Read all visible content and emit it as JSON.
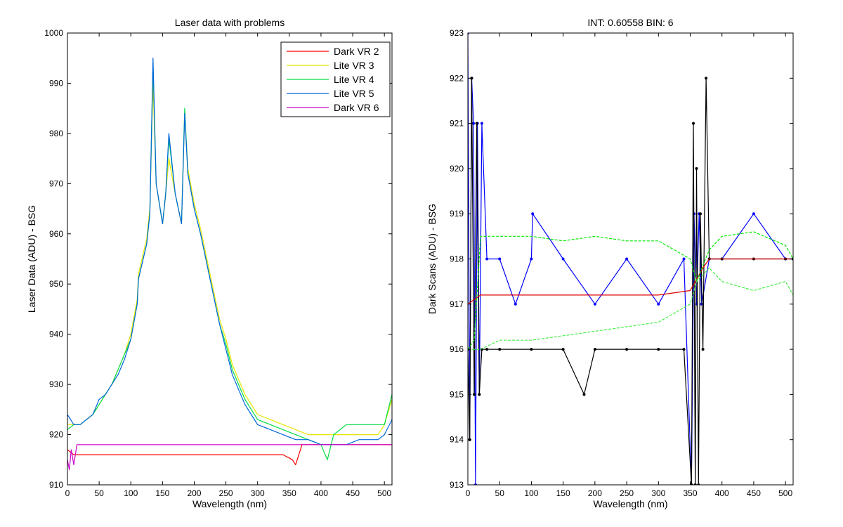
{
  "chart_data": [
    {
      "type": "line",
      "title": "Laser data with problems",
      "xlabel": "Wavelength (nm)",
      "ylabel": "Laser Data (ADU) - BSG",
      "xlim": [
        0,
        512
      ],
      "ylim": [
        910,
        1000
      ],
      "xticks": [
        0,
        50,
        100,
        150,
        200,
        250,
        300,
        350,
        400,
        450,
        500
      ],
      "yticks": [
        910,
        920,
        930,
        940,
        950,
        960,
        970,
        980,
        990,
        1000
      ],
      "grid": false,
      "legend_position": "top-right",
      "series": [
        {
          "name": "Dark VR 2",
          "color": "#ff0000",
          "x": [
            0,
            10,
            20,
            30,
            50,
            100,
            150,
            200,
            250,
            300,
            340,
            355,
            360,
            365,
            370,
            380,
            400,
            450,
            512
          ],
          "y": [
            917,
            916,
            916,
            916,
            916,
            916,
            916,
            916,
            916,
            916,
            916,
            915,
            914,
            916,
            918,
            918,
            918,
            918,
            918
          ]
        },
        {
          "name": "Lite VR 3",
          "color": "#e6e600",
          "x": [
            0,
            10,
            20,
            30,
            40,
            50,
            60,
            70,
            80,
            90,
            100,
            110,
            112,
            125,
            130,
            135,
            140,
            150,
            155,
            160,
            170,
            180,
            185,
            190,
            200,
            210,
            220,
            230,
            240,
            250,
            260,
            270,
            280,
            290,
            300,
            320,
            340,
            360,
            380,
            400,
            420,
            440,
            460,
            480,
            490,
            500,
            512
          ],
          "y": [
            922,
            922,
            922,
            923,
            924,
            926,
            928,
            930,
            933,
            936,
            940,
            947,
            952,
            959,
            965,
            990,
            970,
            962,
            968,
            975,
            968,
            962,
            984,
            973,
            966,
            961,
            955,
            949,
            943,
            939,
            934,
            931,
            928,
            926,
            924,
            923,
            922,
            921,
            920,
            920,
            920,
            920,
            920,
            920,
            920,
            922,
            927
          ]
        },
        {
          "name": "Lite VR 4",
          "color": "#00dd44",
          "x": [
            0,
            10,
            20,
            30,
            40,
            50,
            60,
            70,
            80,
            90,
            100,
            110,
            112,
            125,
            130,
            135,
            140,
            150,
            155,
            160,
            170,
            180,
            185,
            190,
            200,
            210,
            220,
            230,
            240,
            250,
            260,
            270,
            280,
            290,
            300,
            320,
            340,
            360,
            380,
            400,
            410,
            420,
            440,
            460,
            480,
            490,
            500,
            512
          ],
          "y": [
            921,
            922,
            922,
            923,
            924,
            926,
            928,
            930,
            933,
            936,
            939,
            946,
            951,
            958,
            964,
            994,
            970,
            962,
            968,
            979,
            968,
            962,
            985,
            972,
            965,
            960,
            954,
            948,
            942,
            938,
            933,
            930,
            927,
            925,
            923,
            922,
            921,
            920,
            919,
            918,
            915,
            920,
            922,
            922,
            922,
            922,
            922,
            928
          ]
        },
        {
          "name": "Lite VR 5",
          "color": "#0066dd",
          "x": [
            0,
            10,
            20,
            30,
            40,
            50,
            60,
            70,
            80,
            90,
            100,
            110,
            112,
            125,
            130,
            135,
            140,
            150,
            155,
            160,
            170,
            180,
            185,
            190,
            200,
            210,
            220,
            230,
            240,
            250,
            260,
            270,
            280,
            290,
            300,
            320,
            340,
            360,
            380,
            400,
            420,
            440,
            460,
            480,
            490,
            500,
            512
          ],
          "y": [
            924,
            922,
            922,
            923,
            924,
            927,
            928,
            930,
            932,
            935,
            939,
            946,
            951,
            958,
            964,
            995,
            970,
            962,
            968,
            980,
            968,
            962,
            984,
            972,
            965,
            960,
            954,
            948,
            942,
            937,
            932,
            929,
            926,
            924,
            922,
            921,
            920,
            919,
            919,
            918,
            918,
            918,
            919,
            919,
            919,
            920,
            923
          ]
        },
        {
          "name": "Dark VR 6",
          "color": "#cc00cc",
          "x": [
            0,
            3,
            6,
            10,
            15,
            20,
            30,
            50,
            100,
            150,
            200,
            250,
            300,
            350,
            400,
            450,
            512
          ],
          "y": [
            915,
            913,
            917,
            914,
            918,
            918,
            918,
            918,
            918,
            918,
            918,
            918,
            918,
            918,
            918,
            918,
            918
          ]
        }
      ]
    },
    {
      "type": "line",
      "title": "INT: 0.60558    BIN: 6",
      "xlabel": "Wavelength (nm)",
      "ylabel": "Dark Scans (ADU) - BSG",
      "xlim": [
        0,
        512
      ],
      "ylim": [
        913,
        923
      ],
      "xticks": [
        0,
        50,
        100,
        150,
        200,
        250,
        300,
        350,
        400,
        450,
        500
      ],
      "yticks": [
        913,
        914,
        915,
        916,
        917,
        918,
        919,
        920,
        921,
        922,
        923
      ],
      "grid": false,
      "series": [
        {
          "color": "#0000ff",
          "marker": "dot",
          "x": [
            0,
            3,
            6,
            9,
            12,
            15,
            18,
            22,
            30,
            50,
            75,
            100,
            102,
            150,
            200,
            250,
            300,
            340,
            352,
            356,
            360,
            364,
            368,
            380,
            400,
            450,
            500,
            512
          ],
          "y": [
            923,
            914,
            922,
            921,
            913,
            921,
            915,
            921,
            918,
            918,
            917,
            918,
            919,
            918,
            917,
            918,
            917,
            918,
            913,
            919,
            917,
            919,
            917,
            918,
            918,
            919,
            918,
            918
          ]
        },
        {
          "color": "#000000",
          "marker": "dot",
          "x": [
            0,
            3,
            6,
            10,
            14,
            18,
            22,
            30,
            50,
            100,
            150,
            183,
            200,
            250,
            300,
            340,
            352,
            355,
            358,
            360,
            363,
            366,
            370,
            375,
            380,
            400,
            450,
            500,
            512
          ],
          "y": [
            916,
            914,
            922,
            915,
            921,
            915,
            916,
            916,
            916,
            916,
            916,
            915,
            916,
            916,
            916,
            916,
            913,
            921,
            913,
            920,
            913,
            919,
            916,
            922,
            918,
            918,
            918,
            918,
            918
          ]
        },
        {
          "color": "#dd0000",
          "x": [
            0,
            20,
            50,
            100,
            150,
            200,
            250,
            300,
            350,
            370,
            380,
            400,
            450,
            500,
            512
          ],
          "y": [
            917,
            917.2,
            917.2,
            917.2,
            917.2,
            917.2,
            917.2,
            917.2,
            917.3,
            917.8,
            918,
            918,
            918,
            918,
            918
          ]
        },
        {
          "color": "#00ee00",
          "style": "dashed",
          "x": [
            0,
            10,
            20,
            50,
            100,
            150,
            200,
            250,
            300,
            350,
            360,
            380,
            400,
            450,
            500,
            512
          ],
          "y": [
            916,
            916.2,
            918.5,
            918.5,
            918.5,
            918.4,
            918.5,
            918.4,
            918.4,
            918,
            917.5,
            918.2,
            918.5,
            918.6,
            918.3,
            918
          ]
        },
        {
          "color": "#44ee44",
          "style": "dashed",
          "x": [
            0,
            20,
            50,
            100,
            150,
            200,
            250,
            300,
            350,
            360,
            380,
            400,
            450,
            500,
            512
          ],
          "y": [
            916,
            916,
            916.2,
            916.2,
            916.3,
            916.4,
            916.5,
            916.6,
            917,
            917.5,
            917.8,
            917.5,
            917.3,
            917.5,
            917.2
          ]
        }
      ]
    }
  ]
}
